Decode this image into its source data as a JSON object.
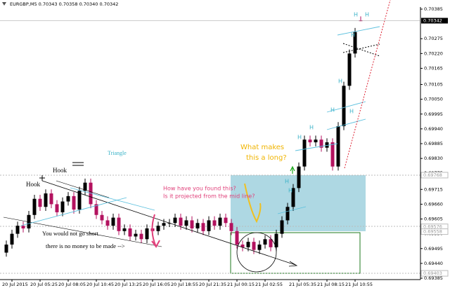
{
  "chart_data": {
    "type": "candlestick",
    "title": "EURGBP,M5  0.70343 0.70358 0.70340 0.70342",
    "up_color": "#000000",
    "down_color": "#b3125f",
    "open": [
      0.6948,
      0.6951,
      0.6955,
      0.6958,
      0.6957,
      0.6962,
      0.6968,
      0.6965,
      0.697,
      0.6966,
      0.6963,
      0.6967,
      0.6969,
      0.6964,
      0.6971,
      0.6974,
      0.6966,
      0.6962,
      0.696,
      0.6958,
      0.6961,
      0.6956,
      0.6957,
      0.6954,
      0.6955,
      0.6953,
      0.6957,
      0.6956,
      0.6958,
      0.6959,
      0.6959,
      0.6961,
      0.6958,
      0.696,
      0.6957,
      0.6959,
      0.6956,
      0.696,
      0.6958,
      0.6961,
      0.6959,
      0.6956,
      0.6951,
      0.695,
      0.6952,
      0.6949,
      0.6951,
      0.6953,
      0.695,
      0.6955,
      0.696,
      0.6965,
      0.6972,
      0.698,
      0.699,
      0.6989,
      0.699,
      0.6987,
      0.6989,
      0.698,
      0.6995,
      0.701,
      0.7022,
      0.70343
    ],
    "high": [
      0.69525,
      0.69565,
      0.69595,
      0.69595,
      0.69635,
      0.69695,
      0.69695,
      0.69715,
      0.69715,
      0.69675,
      0.69685,
      0.69705,
      0.69705,
      0.69725,
      0.69755,
      0.69755,
      0.69675,
      0.69635,
      0.69615,
      0.69625,
      0.69625,
      0.69585,
      0.69585,
      0.69565,
      0.69565,
      0.69585,
      0.69585,
      0.69595,
      0.69605,
      0.69605,
      0.69625,
      0.69625,
      0.69615,
      0.69615,
      0.69605,
      0.69605,
      0.69615,
      0.69615,
      0.69625,
      0.69625,
      0.69605,
      0.69575,
      0.69525,
      0.69535,
      0.69535,
      0.69525,
      0.69545,
      0.69545,
      0.69565,
      0.69615,
      0.69665,
      0.69735,
      0.69815,
      0.69915,
      0.69915,
      0.69915,
      0.69915,
      0.69905,
      0.69905,
      0.69965,
      0.70115,
      0.70235,
      0.70315,
      0.70358
    ],
    "low": [
      0.69465,
      0.69495,
      0.69535,
      0.69555,
      0.69555,
      0.69605,
      0.69635,
      0.69635,
      0.69645,
      0.69615,
      0.69615,
      0.69655,
      0.69625,
      0.69625,
      0.69695,
      0.69645,
      0.69605,
      0.69585,
      0.69565,
      0.69565,
      0.69545,
      0.69545,
      0.69525,
      0.69525,
      0.69515,
      0.69515,
      0.69545,
      0.69545,
      0.69565,
      0.69575,
      0.69575,
      0.69565,
      0.69565,
      0.69555,
      0.69555,
      0.69545,
      0.69545,
      0.69565,
      0.69565,
      0.69575,
      0.69545,
      0.69495,
      0.69485,
      0.69485,
      0.69475,
      0.69475,
      0.69495,
      0.69485,
      0.69485,
      0.69535,
      0.69585,
      0.69635,
      0.69705,
      0.69785,
      0.69875,
      0.69875,
      0.69855,
      0.69855,
      0.69785,
      0.69785,
      0.69935,
      0.70085,
      0.70205,
      0.7034
    ],
    "close": [
      0.6951,
      0.6955,
      0.6958,
      0.6957,
      0.6962,
      0.6968,
      0.6965,
      0.697,
      0.6966,
      0.6963,
      0.6967,
      0.6969,
      0.6964,
      0.6971,
      0.6974,
      0.6966,
      0.6962,
      0.696,
      0.6958,
      0.6961,
      0.6956,
      0.6957,
      0.6954,
      0.6955,
      0.6953,
      0.6957,
      0.6956,
      0.6958,
      0.6959,
      0.6959,
      0.6961,
      0.6958,
      0.696,
      0.6957,
      0.6959,
      0.6956,
      0.696,
      0.6958,
      0.6961,
      0.6959,
      0.6956,
      0.6951,
      0.695,
      0.6952,
      0.6949,
      0.6951,
      0.6953,
      0.695,
      0.6955,
      0.696,
      0.6965,
      0.6972,
      0.698,
      0.699,
      0.6989,
      0.699,
      0.6987,
      0.6989,
      0.698,
      0.6995,
      0.701,
      0.7022,
      0.703,
      0.70342
    ],
    "ylim": [
      0.69385,
      0.70385
    ],
    "yticks": [
      0.70385,
      0.70275,
      {
        "value": 0.7022,
        "label": "0.70220"
      },
      0.70165,
      0.70105,
      {
        "value": 0.7005,
        "label": "0.70050"
      },
      0.69995,
      {
        "value": 0.6994,
        "label": "0.69940"
      },
      0.69885,
      {
        "value": 0.6983,
        "label": "0.69830"
      },
      0.69775,
      0.69715,
      {
        "value": 0.6966,
        "label": "0.69660"
      },
      0.69605,
      {
        "value": 0.6955,
        "label": "0.69550"
      },
      0.69495,
      {
        "value": 0.6944,
        "label": "0.69440"
      },
      0.69385
    ],
    "xticks": [
      {
        "value": 1,
        "label": "20 Jul 2015"
      },
      {
        "value": 6,
        "label": "20 Jul 05:25"
      },
      {
        "value": 11,
        "label": "20 Jul 08:05"
      },
      {
        "value": 16,
        "label": "20 Jul 10:45"
      },
      {
        "value": 21,
        "label": "20 Jul 13:25"
      },
      {
        "value": 26,
        "label": "20 Jul 16:05"
      },
      {
        "value": 31,
        "label": "20 Jul 18:55"
      },
      {
        "value": 36,
        "label": "20 Jul 21:35"
      },
      {
        "value": 41,
        "label": "21 Jul 00:15"
      },
      {
        "value": 46,
        "label": "21 Jul 02:55"
      },
      {
        "value": 52,
        "label": "21 Jul 05:35"
      },
      {
        "value": 57,
        "label": "21 Jul 08:15"
      },
      {
        "value": 62,
        "label": "21 Jul 10:55"
      }
    ],
    "levels": [
      {
        "value": 0.69768,
        "label": "0.69768"
      },
      {
        "value": 0.69576,
        "label": "0.69576"
      },
      {
        "value": 0.69558,
        "label": "0.69558"
      },
      {
        "value": 0.69403,
        "label": "0.69403"
      }
    ],
    "price_tag": 0.70342,
    "annotations": [
      "Hook",
      "Hook",
      "Triangle",
      "What makes",
      "this a long?",
      "How have you found this?",
      "Is it projected from the mid line?",
      "You would not go short",
      "there is no money to be made -->"
    ],
    "h_labels": [
      "H",
      "H",
      "H",
      "H",
      "H",
      "H",
      "H",
      "H",
      "H",
      "H"
    ]
  }
}
